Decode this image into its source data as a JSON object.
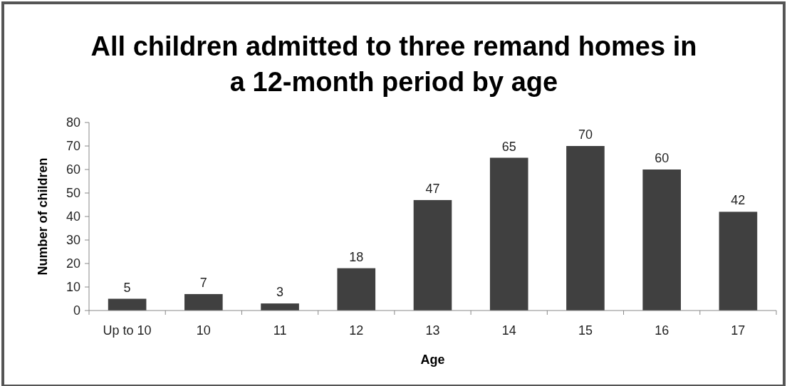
{
  "chart_data": {
    "type": "bar",
    "title": "All children admitted to three remand homes in a 12-month period by age",
    "xlabel": "Age",
    "ylabel": "Number of children",
    "categories": [
      "Up to 10",
      "10",
      "11",
      "12",
      "13",
      "14",
      "15",
      "16",
      "17"
    ],
    "values": [
      5,
      7,
      3,
      18,
      47,
      65,
      70,
      60,
      42
    ],
    "color": "#404040",
    "ylim": [
      0,
      80
    ],
    "yticks": [
      0,
      10,
      20,
      30,
      40,
      50,
      60,
      70,
      80
    ],
    "grid": false,
    "data_labels": true
  }
}
